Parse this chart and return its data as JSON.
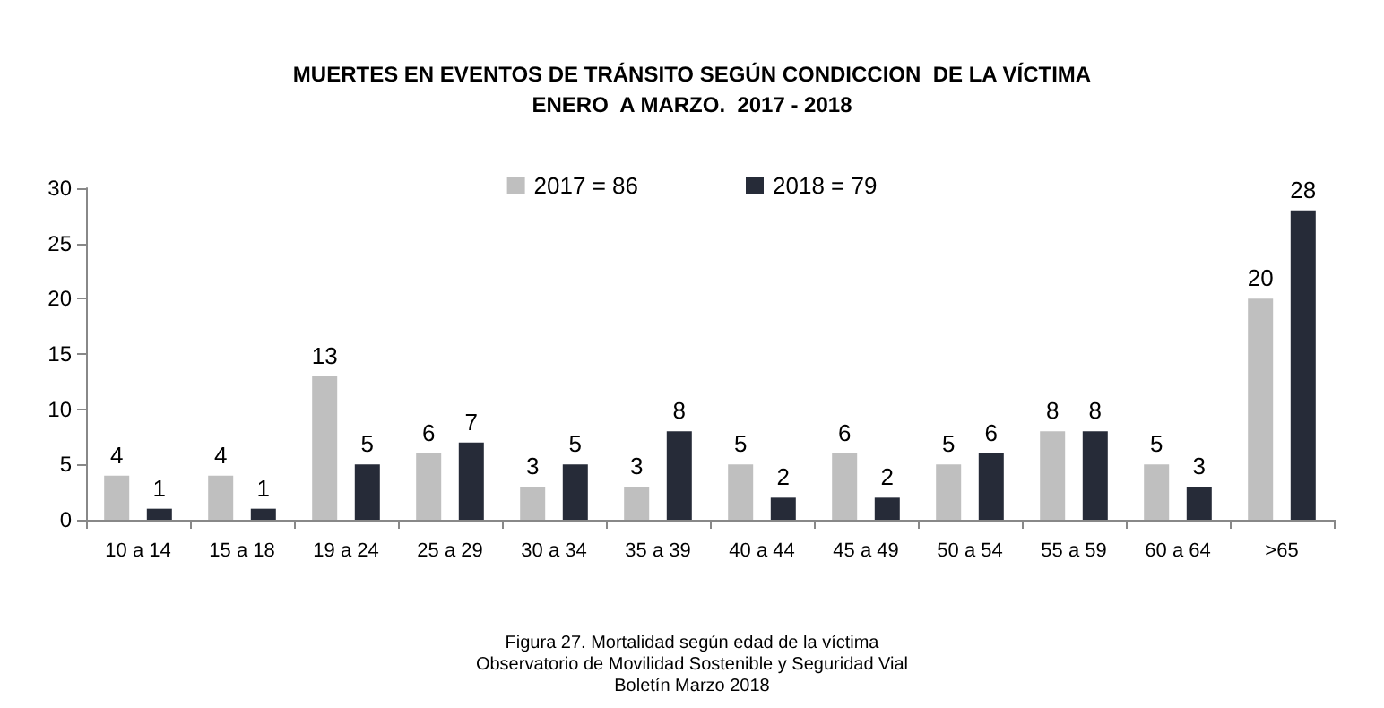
{
  "chart_data": {
    "type": "bar",
    "title": "MUERTES EN EVENTOS DE TRÁNSITO SEGÚN CONDICCION  DE LA VÍCTIMA\nENERO  A MARZO.  2017 - 2018",
    "categories": [
      "10 a 14",
      "15 a 18",
      "19 a 24",
      "25 a 29",
      "30 a 34",
      "35 a 39",
      "40 a 44",
      "45 a 49",
      "50 a 54",
      "55 a 59",
      "60 a 64",
      ">65"
    ],
    "series": [
      {
        "name": "2017 = 86",
        "color": "#bfbfbf",
        "values": [
          4,
          4,
          13,
          6,
          3,
          3,
          5,
          6,
          5,
          8,
          5,
          20
        ]
      },
      {
        "name": "2018 = 79",
        "color": "#262b38",
        "values": [
          1,
          1,
          5,
          7,
          5,
          8,
          2,
          2,
          6,
          8,
          3,
          28
        ]
      }
    ],
    "ylim": [
      0,
      30
    ],
    "yticks": [
      0,
      5,
      10,
      15,
      20,
      25,
      30
    ],
    "grid": false,
    "legend": "top",
    "data_labels": true,
    "annotations": [
      "Figura 27. Mortalidad según edad de la víctima\nObservatorio de Movilidad Sostenible y Seguridad Vial\nBoletín Marzo 2018"
    ]
  }
}
